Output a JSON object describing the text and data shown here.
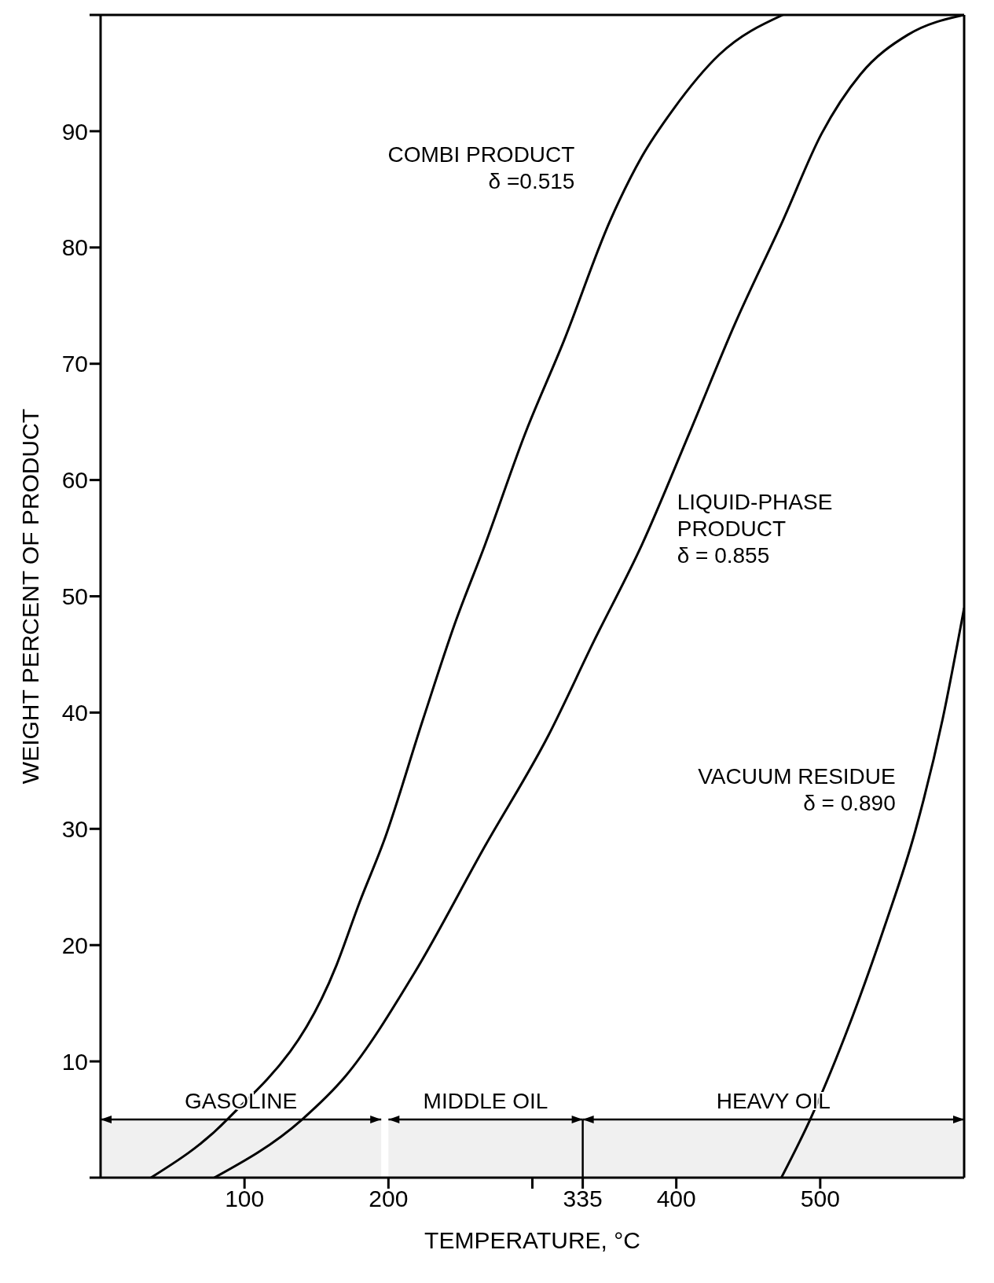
{
  "chart_data": {
    "type": "line",
    "xlabel": "TEMPERATURE, °C",
    "ylabel": "WEIGHT PERCENT OF PRODUCT",
    "xlim": [
      0,
      600
    ],
    "ylim": [
      0,
      100
    ],
    "xticks": [
      100,
      200,
      {
        "value": 300,
        "label": null
      },
      335,
      400,
      500
    ],
    "yticks": [
      {
        "value": 0,
        "label": null
      },
      10,
      20,
      30,
      40,
      50,
      60,
      70,
      80,
      90,
      {
        "value": 100,
        "label": null
      }
    ],
    "grid": false,
    "legend": false,
    "marker": "none",
    "line_style": "solid",
    "series": [
      {
        "name": "COMBI PRODUCT\nδ =0.515",
        "color": "#000000",
        "x": [
          35,
          88,
          164,
          180,
          197,
          224,
          246,
          267,
          295,
          322,
          354,
          376,
          398,
          430,
          474
        ],
        "values": [
          0,
          5,
          18.3,
          23.7,
          29,
          39.4,
          47.6,
          54.4,
          64,
          72,
          82.3,
          87.8,
          91.9,
          96.6,
          100
        ]
      },
      {
        "name": "LIQUID-PHASE\nPRODUCT\nδ = 0.855",
        "color": "#000000",
        "x": [
          79,
          140,
          170,
          218,
          267,
          311,
          343,
          376,
          409,
          441,
          474,
          501,
          528,
          561,
          600
        ],
        "values": [
          0,
          5,
          8.7,
          17.6,
          28.5,
          38,
          46.2,
          54.4,
          64,
          73.5,
          82.3,
          89.8,
          94.9,
          98.3,
          100
        ]
      },
      {
        "name": "VACUUM RESIDUE\nδ = 0.890",
        "color": "#000000",
        "x": [
          473,
          493,
          517,
          545,
          566,
          585,
          600
        ],
        "values": [
          0,
          5,
          12.1,
          21.7,
          29.8,
          39.4,
          49
        ]
      }
    ],
    "bands": [
      {
        "axis": "x",
        "from": 0,
        "to": 195,
        "label": "GASOLINE"
      },
      {
        "axis": "x",
        "from": 200,
        "to": 335,
        "label": "MIDDLE OIL"
      },
      {
        "axis": "x",
        "from": 335,
        "to": 600,
        "label": "HEAVY OIL"
      }
    ]
  }
}
